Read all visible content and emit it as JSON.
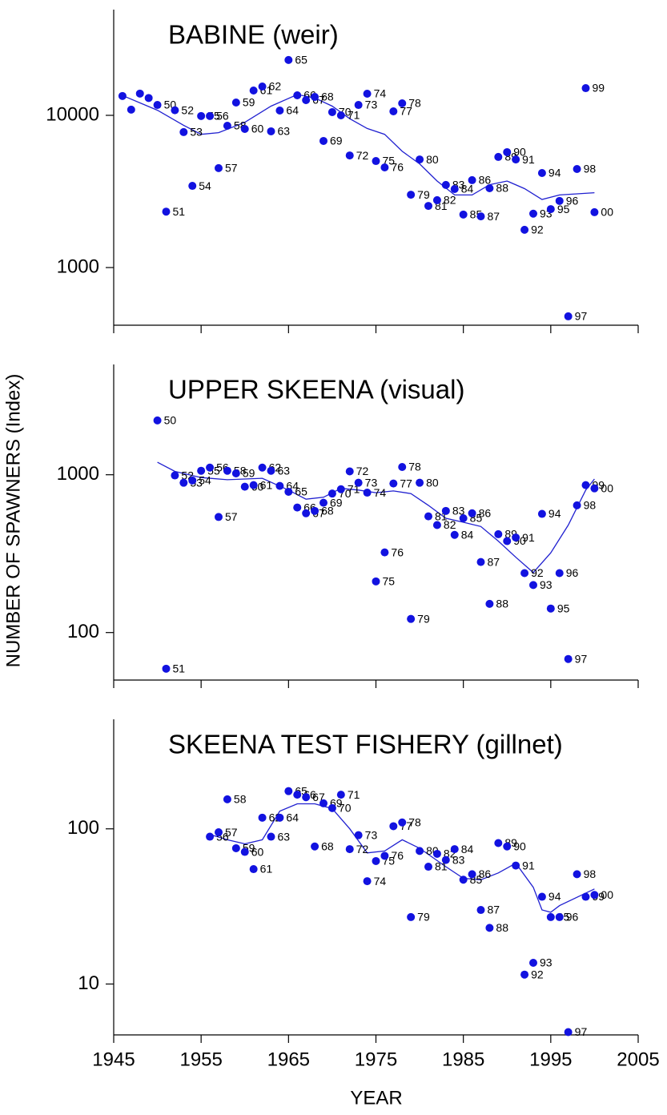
{
  "chart_data": [
    {
      "type": "scatter",
      "title": "BABINE (weir)",
      "ylog": true,
      "color": "#1212e0",
      "xlim": [
        1945,
        2005
      ],
      "xticks": [
        1945,
        1955,
        1965,
        1975,
        1985,
        1995,
        2005
      ],
      "ylim": [
        418,
        49500
      ],
      "yticks": [
        1000,
        10000
      ],
      "x": [
        1946,
        1947,
        1948,
        1949,
        1950,
        1951,
        1952,
        1953,
        1954,
        1955,
        1956,
        1957,
        1958,
        1959,
        1960,
        1961,
        1962,
        1963,
        1964,
        1965,
        1966,
        1967,
        1968,
        1969,
        1970,
        1971,
        1972,
        1973,
        1974,
        1975,
        1976,
        1977,
        1978,
        1979,
        1980,
        1981,
        1982,
        1983,
        1984,
        1985,
        1986,
        1987,
        1988,
        1989,
        1990,
        1991,
        1992,
        1993,
        1994,
        1995,
        1996,
        1997,
        1998,
        1999,
        2000
      ],
      "values": [
        13400,
        10900,
        13900,
        13000,
        11700,
        2330,
        10800,
        7760,
        3440,
        9900,
        9900,
        4500,
        8540,
        12140,
        8140,
        14560,
        15470,
        7850,
        10750,
        23100,
        13540,
        12590,
        13210,
        6790,
        10500,
        10000,
        5450,
        11700,
        13870,
        5010,
        4550,
        10620,
        11990,
        3010,
        5130,
        2540,
        2770,
        3490,
        3280,
        2230,
        3750,
        2170,
        3320,
        5330,
        5730,
        5130,
        1770,
        2260,
        4180,
        2420,
        2740,
        478,
        4440,
        15090,
        2310
      ],
      "point_labels": [
        null,
        null,
        null,
        null,
        "50",
        "51",
        "52",
        "53",
        "54",
        "55",
        "56",
        "57",
        "58",
        "59",
        "60",
        "61",
        "62",
        "63",
        "64",
        "65",
        "66",
        "67",
        "68",
        "69",
        "70",
        "71",
        "72",
        "73",
        "74",
        "75",
        "76",
        "77",
        "78",
        "79",
        "80",
        "81",
        "82",
        "83",
        "84",
        "85",
        "86",
        "87",
        "88",
        "89",
        "90",
        "91",
        "92",
        "93",
        "94",
        "95",
        "96",
        "97",
        "98",
        "99",
        "00"
      ],
      "trend": {
        "color": "#2020d0",
        "x": [
          1946,
          1950,
          1953,
          1955,
          1957,
          1960,
          1963,
          1966,
          1968,
          1970,
          1972,
          1974,
          1976,
          1978,
          1980,
          1982,
          1984,
          1986,
          1988,
          1990,
          1992,
          1994,
          1996,
          2000
        ],
        "values": [
          13500,
          10800,
          8600,
          7500,
          7700,
          9000,
          11500,
          13700,
          13000,
          11500,
          9500,
          8200,
          7500,
          5800,
          4800,
          3700,
          3000,
          3000,
          3500,
          3700,
          3300,
          2800,
          3000,
          3100
        ]
      }
    },
    {
      "type": "scatter",
      "title": "UPPER SKEENA (visual)",
      "ylabel": "NUMBER OF SPAWNERS (Index)",
      "ylog": true,
      "color": "#1212e0",
      "xlim": [
        1945,
        2005
      ],
      "xticks": [
        1945,
        1955,
        1965,
        1975,
        1985,
        1995,
        2005
      ],
      "ylim": [
        50,
        5000
      ],
      "yticks": [
        100,
        1000
      ],
      "x": [
        1950,
        1951,
        1952,
        1953,
        1954,
        1955,
        1956,
        1957,
        1958,
        1959,
        1960,
        1961,
        1962,
        1963,
        1964,
        1965,
        1966,
        1967,
        1968,
        1969,
        1970,
        1971,
        1972,
        1973,
        1974,
        1975,
        1976,
        1977,
        1978,
        1979,
        1980,
        1981,
        1982,
        1983,
        1984,
        1985,
        1986,
        1987,
        1988,
        1989,
        1990,
        1991,
        1992,
        1993,
        1994,
        1995,
        1996,
        1997,
        1998,
        1999,
        2000
      ],
      "values": [
        2210,
        59,
        990,
        890,
        920,
        1060,
        1110,
        540,
        1060,
        1020,
        840,
        860,
        1110,
        1060,
        850,
        780,
        620,
        570,
        590,
        665,
        760,
        810,
        1050,
        890,
        770,
        211,
        322,
        880,
        1120,
        122,
        890,
        545,
        480,
        590,
        416,
        530,
        570,
        280,
        152,
        420,
        380,
        400,
        238,
        200,
        565,
        142,
        238,
        68,
        640,
        860,
        820
      ],
      "point_labels": [
        "50",
        "51",
        "52",
        "53",
        "54",
        "55",
        "56",
        "57",
        "58",
        "59",
        "60",
        "61",
        "62",
        "63",
        "64",
        "65",
        "66",
        "67",
        "68",
        "69",
        "70",
        "71",
        "72",
        "73",
        "74",
        "75",
        "76",
        "77",
        "78",
        "79",
        "80",
        "81",
        "82",
        "83",
        "84",
        "85",
        "86",
        "87",
        "88",
        "89",
        "90",
        "91",
        "92",
        "93",
        "94",
        "95",
        "96",
        "97",
        "98",
        "99",
        "00"
      ],
      "trend": {
        "color": "#2020d0",
        "x": [
          1950,
          1952,
          1955,
          1958,
          1962,
          1965,
          1967,
          1969,
          1971,
          1973,
          1975,
          1977,
          1979,
          1981,
          1983,
          1985,
          1987,
          1989,
          1991,
          1993,
          1995,
          1997,
          1999,
          2000
        ],
        "values": [
          1200,
          1050,
          960,
          930,
          950,
          800,
          700,
          720,
          820,
          800,
          770,
          790,
          760,
          640,
          530,
          500,
          470,
          380,
          300,
          240,
          320,
          480,
          800,
          940
        ]
      }
    },
    {
      "type": "scatter",
      "title": "SKEENA TEST FISHERY (gillnet)",
      "xlabel": "YEAR",
      "ylog": true,
      "color": "#1212e0",
      "xlim": [
        1945,
        2005
      ],
      "xticks": [
        1945,
        1955,
        1965,
        1975,
        1985,
        1995,
        2005
      ],
      "ylim": [
        4.7,
        508
      ],
      "yticks": [
        10,
        100
      ],
      "x": [
        1956,
        1957,
        1958,
        1959,
        1960,
        1961,
        1962,
        1963,
        1964,
        1965,
        1966,
        1967,
        1968,
        1969,
        1970,
        1971,
        1972,
        1973,
        1974,
        1975,
        1976,
        1977,
        1978,
        1979,
        1980,
        1981,
        1982,
        1983,
        1984,
        1985,
        1986,
        1987,
        1988,
        1989,
        1990,
        1991,
        1992,
        1993,
        1994,
        1995,
        1996,
        1997,
        1998,
        1999,
        2000
      ],
      "values": [
        89,
        95,
        155,
        75,
        71,
        55,
        118,
        89,
        118,
        175,
        166,
        160,
        77,
        146,
        136,
        166,
        74,
        91,
        46,
        62,
        67,
        104,
        110,
        27,
        72,
        57,
        69,
        63,
        74,
        47,
        51,
        30,
        23,
        81,
        77,
        58,
        11.5,
        13.7,
        36.5,
        27,
        27,
        4.9,
        51,
        36.5,
        37.5
      ],
      "point_labels": [
        "56",
        "57",
        "58",
        "59",
        "60",
        "61",
        "62",
        "63",
        "64",
        "65",
        "66",
        "67",
        "68",
        "69",
        "70",
        "71",
        "72",
        "73",
        "74",
        "75",
        "76",
        "77",
        "78",
        "79",
        "80",
        "81",
        "82",
        "83",
        "84",
        "85",
        "86",
        "87",
        "88",
        "89",
        "90",
        "91",
        "92",
        "93",
        "94",
        "95",
        "96",
        "97",
        "98",
        "99",
        "00"
      ],
      "trend": {
        "color": "#2020d0",
        "x": [
          1956,
          1958,
          1960,
          1962,
          1964,
          1966,
          1968,
          1970,
          1972,
          1974,
          1976,
          1978,
          1980,
          1983,
          1985,
          1987,
          1989,
          1991,
          1993,
          1994,
          1995,
          1996,
          2000
        ],
        "values": [
          92,
          85,
          80,
          85,
          130,
          145,
          145,
          135,
          100,
          70,
          72,
          85,
          75,
          57,
          48,
          47,
          52,
          60,
          42,
          30,
          29,
          32,
          41
        ]
      }
    }
  ]
}
